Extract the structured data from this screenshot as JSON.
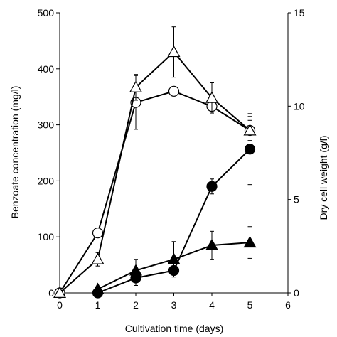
{
  "chart_data": {
    "type": "line",
    "xlabel": "Cultivation time (days)",
    "ylabel_left": "Benzoate concentration (mg/l)",
    "ylabel_right": "Dry cell weight (g/l)",
    "xlim": [
      0,
      6
    ],
    "xticks": [
      "0",
      "1",
      "2",
      "3",
      "4",
      "5",
      "6"
    ],
    "ylim_left": [
      0,
      500
    ],
    "yticks_left": [
      "0",
      "100",
      "200",
      "300",
      "400",
      "500"
    ],
    "ylim_right": [
      0,
      15
    ],
    "yticks_right": [
      "0",
      "5",
      "10",
      "15"
    ],
    "grid": false,
    "series": [
      {
        "axis": "left",
        "marker": "circle",
        "fill": "#ffffff",
        "x": [
          0,
          1,
          2,
          3,
          4,
          5
        ],
        "y": [
          0,
          107,
          340,
          360,
          333,
          290
        ],
        "err": [
          0,
          0,
          48,
          0,
          0,
          25
        ]
      },
      {
        "axis": "left",
        "marker": "triangle",
        "fill": "#ffffff",
        "x": [
          0,
          1,
          2,
          3,
          4,
          5
        ],
        "y": [
          0,
          60,
          367,
          430,
          348,
          290
        ],
        "err": [
          0,
          12,
          23,
          45,
          27,
          18
        ]
      },
      {
        "axis": "right",
        "marker": "circle",
        "fill": "#000000",
        "x": [
          1,
          2,
          3,
          4,
          5
        ],
        "y": [
          0,
          0.8,
          1.2,
          5.7,
          7.7
        ],
        "err": [
          0,
          0.4,
          0,
          0.4,
          1.9
        ]
      },
      {
        "axis": "right",
        "marker": "triangle",
        "fill": "#000000",
        "x": [
          1,
          2,
          3,
          4,
          5
        ],
        "y": [
          0.2,
          1.2,
          1.8,
          2.55,
          2.7
        ],
        "err": [
          0,
          0.6,
          0.95,
          0.75,
          0.85
        ]
      }
    ]
  }
}
